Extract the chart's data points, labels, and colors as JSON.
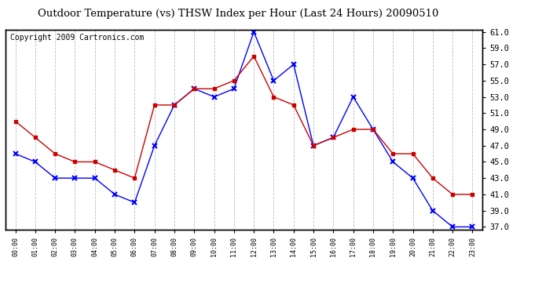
{
  "title": "Outdoor Temperature (vs) THSW Index per Hour (Last 24 Hours) 20090510",
  "copyright": "Copyright 2009 Cartronics.com",
  "hours": [
    "00:00",
    "01:00",
    "02:00",
    "03:00",
    "04:00",
    "05:00",
    "06:00",
    "07:00",
    "08:00",
    "09:00",
    "10:00",
    "11:00",
    "12:00",
    "13:00",
    "14:00",
    "15:00",
    "16:00",
    "17:00",
    "18:00",
    "19:00",
    "20:00",
    "21:00",
    "22:00",
    "23:00"
  ],
  "temp_blue": [
    46,
    45,
    43,
    43,
    43,
    41,
    40,
    47,
    52,
    54,
    53,
    54,
    61,
    55,
    57,
    47,
    48,
    53,
    49,
    45,
    43,
    39,
    37,
    37
  ],
  "thsw_red": [
    50,
    48,
    46,
    45,
    45,
    44,
    43,
    52,
    52,
    54,
    54,
    55,
    58,
    53,
    52,
    47,
    48,
    49,
    49,
    46,
    46,
    43,
    41,
    41
  ],
  "ylim_min": 37.0,
  "ylim_max": 61.0,
  "yticks": [
    37.0,
    39.0,
    41.0,
    43.0,
    45.0,
    47.0,
    49.0,
    51.0,
    53.0,
    55.0,
    57.0,
    59.0,
    61.0
  ],
  "blue_color": "#0000ff",
  "red_color": "#cc0000",
  "bg_color": "#ffffff",
  "grid_color": "#bbbbbb",
  "title_fontsize": 9.5,
  "copyright_fontsize": 7
}
